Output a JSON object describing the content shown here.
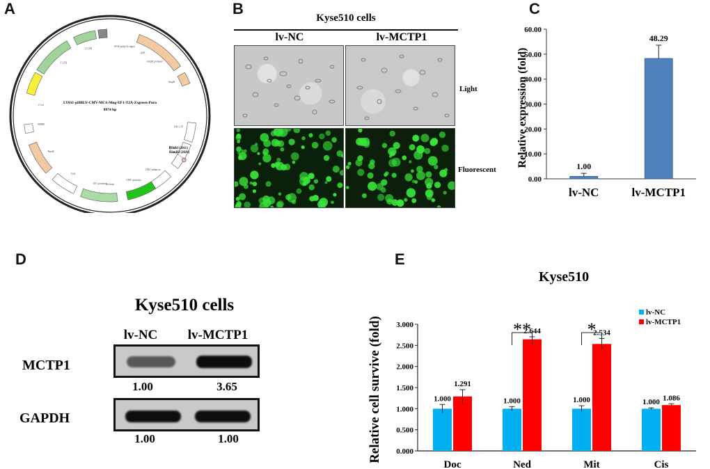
{
  "panel_a": {
    "letter": "A",
    "plasmid_name": "LV011-pHBLV-CMV-MCS-Mng-EF1-T2A-Zsgreen-Puro",
    "plasmid_size": "8974 bp",
    "site1_name": "EcoRI",
    "site1_pos": "(2011)",
    "site2_name": "BamHI",
    "site2_pos": "(2026)",
    "feature_labels": [
      "SV40 poly(A) signal",
      "AmpR promoter",
      "AmpR",
      "HIV-1 Ψ",
      "RRE",
      "CMV enhancer",
      "CMV promoter",
      "EF1 promoter",
      "ZsGreen",
      "T2A",
      "PuroR",
      "WPRE",
      "f1 ori",
      "3' LTR",
      "5' LTR",
      "cPPT"
    ],
    "colors": {
      "ring": "#222222",
      "amp": "#9fd39b",
      "ori": "#f7f03a",
      "ltr": "#f2c9a0",
      "zsgreen": "#22c51a",
      "puro": "#a9dca4",
      "promoter": "#ffffff"
    }
  },
  "panel_b": {
    "letter": "B",
    "title": "Kyse510 cells",
    "col_labels": [
      "lv-NC",
      "lv-MCTP1"
    ],
    "row_labels": [
      "Light",
      "Fluorescent"
    ]
  },
  "panel_c": {
    "letter": "C",
    "chart_data": {
      "type": "bar",
      "categories": [
        "lv-NC",
        "lv-MCTP1"
      ],
      "values": [
        1.0,
        48.29
      ],
      "errors": [
        1.2,
        5.3
      ],
      "value_labels": [
        "1.00",
        "48.29"
      ],
      "ylabel": "Relative expression (fold)",
      "ylim": [
        0,
        60
      ],
      "yticks": [
        "0.00",
        "10.00",
        "20.00",
        "30.00",
        "40.00",
        "50.00",
        "60.00"
      ],
      "bar_color": "#4f81bd"
    }
  },
  "panel_d": {
    "letter": "D",
    "title": "Kyse510 cells",
    "col_labels": [
      "lv-NC",
      "lv-MCTP1"
    ],
    "rows": [
      {
        "label": "MCTP1",
        "values": [
          "1.00",
          "3.65"
        ],
        "intensity": [
          0.6,
          1.0
        ]
      },
      {
        "label": "GAPDH",
        "values": [
          "1.00",
          "1.00"
        ],
        "intensity": [
          1.0,
          1.0
        ]
      }
    ]
  },
  "panel_e": {
    "letter": "E",
    "chart_data": {
      "type": "bar",
      "title": "Kyse510",
      "categories": [
        "Doc",
        "Ned",
        "Mit",
        "Cis"
      ],
      "series": [
        {
          "name": "lv-NC",
          "color": "#00b0f0",
          "values": [
            1.0,
            1.0,
            1.0,
            1.0
          ],
          "errors": [
            0.1,
            0.05,
            0.07,
            0.02
          ],
          "labels": [
            "1.000",
            "1.000",
            "1.000",
            "1.000"
          ]
        },
        {
          "name": "lv-MCTP1",
          "color": "#ff0000",
          "values": [
            1.291,
            2.644,
            2.534,
            1.086
          ],
          "errors": [
            0.16,
            0.06,
            0.13,
            0.03
          ],
          "labels": [
            "1.291",
            "2.644",
            "2.534",
            "1.086"
          ]
        }
      ],
      "significance": [
        {
          "category": "Ned",
          "label": "**"
        },
        {
          "category": "Mit",
          "label": "*"
        }
      ],
      "ylabel": "Relative cell survive (fold)",
      "ylim": [
        0,
        3
      ],
      "yticks": [
        "0.000",
        "0.500",
        "1.000",
        "1.500",
        "2.000",
        "2.500",
        "3.000"
      ],
      "legend_position": "top-right"
    }
  }
}
